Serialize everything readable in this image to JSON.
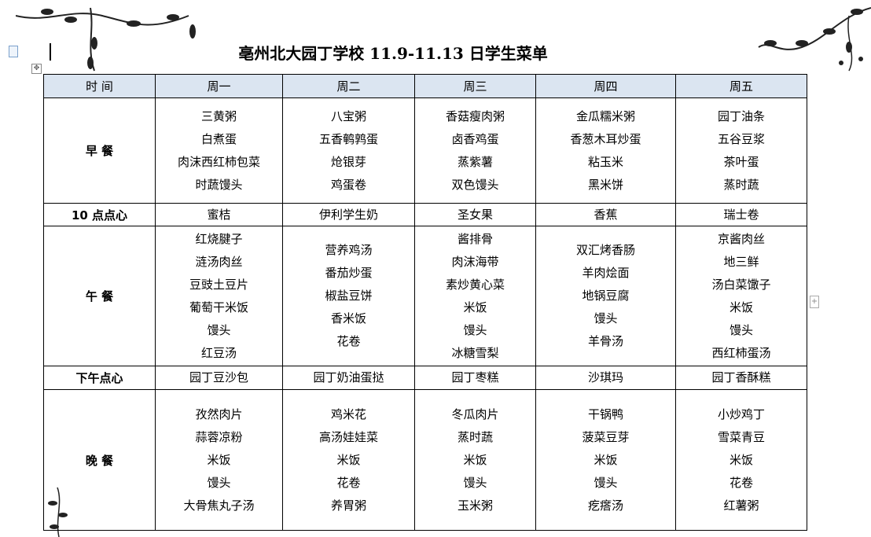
{
  "title": "亳州北大园丁学校 11.9-11.13 日学生菜单",
  "headers": [
    "时  间",
    "周一",
    "周二",
    "周三",
    "周四",
    "周五"
  ],
  "rows": [
    {
      "label": "早  餐",
      "cells": [
        [
          "三黄粥",
          "白煮蛋",
          "肉沫西红柿包菜",
          "时蔬馒头"
        ],
        [
          "八宝粥",
          "五香鹌鹑蛋",
          "炝银芽",
          "鸡蛋卷"
        ],
        [
          "香菇瘦肉粥",
          "卤香鸡蛋",
          "蒸紫薯",
          "双色馒头"
        ],
        [
          "金瓜糯米粥",
          "香葱木耳炒蛋",
          "粘玉米",
          "黑米饼"
        ],
        [
          "园丁油条",
          "五谷豆浆",
          "茶叶蛋",
          "蒸时蔬"
        ]
      ]
    },
    {
      "label": "10 点点心",
      "cells": [
        [
          "蜜桔"
        ],
        [
          "伊利学生奶"
        ],
        [
          "圣女果"
        ],
        [
          "香蕉"
        ],
        [
          "瑞士卷"
        ]
      ]
    },
    {
      "label": "午  餐",
      "cells": [
        [
          "红烧腱子",
          "涟汤肉丝",
          "豆豉土豆片",
          "葡萄干米饭",
          "馒头",
          "红豆汤"
        ],
        [
          "营养鸡汤",
          "番茄炒蛋",
          "椒盐豆饼",
          "香米饭",
          "花卷"
        ],
        [
          "酱排骨",
          "肉沫海带",
          "素炒黄心菜",
          "米饭",
          "馒头",
          "冰糖雪梨"
        ],
        [
          "双汇烤香肠",
          "羊肉烩面",
          "地锅豆腐",
          "馒头",
          "羊骨汤"
        ],
        [
          "京酱肉丝",
          "地三鲜",
          "汤白菜馓子",
          "米饭",
          "馒头",
          "西红柿蛋汤"
        ]
      ]
    },
    {
      "label": "下午点心",
      "cells": [
        [
          "园丁豆沙包"
        ],
        [
          "园丁奶油蛋挞"
        ],
        [
          "园丁枣糕"
        ],
        [
          "沙琪玛"
        ],
        [
          "园丁香酥糕"
        ]
      ]
    },
    {
      "label": "晚  餐",
      "cells": [
        [
          "孜然肉片",
          "蒜蓉凉粉",
          "米饭",
          "馒头",
          "大骨焦丸子汤"
        ],
        [
          "鸡米花",
          "高汤娃娃菜",
          "米饭",
          "花卷",
          "养胃粥"
        ],
        [
          "冬瓜肉片",
          "蒸时蔬",
          "米饭",
          "馒头",
          "玉米粥"
        ],
        [
          "干锅鸭",
          "菠菜豆芽",
          "米饭",
          "馒头",
          "疙瘩汤"
        ],
        [
          "小炒鸡丁",
          "雪菜青豆",
          "米饭",
          "花卷",
          "红薯粥"
        ]
      ]
    }
  ],
  "colors": {
    "header_bg": "#dbe5f1",
    "border": "#000000"
  }
}
